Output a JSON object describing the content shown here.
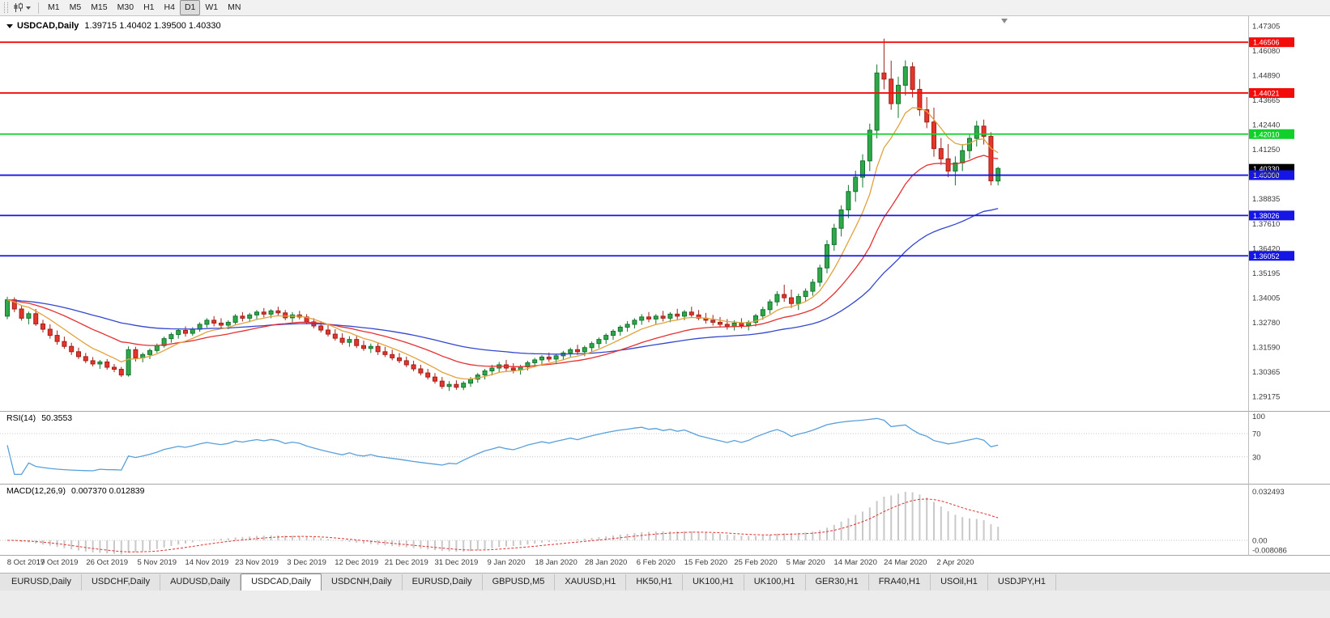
{
  "toolbar": {
    "timeframes": [
      "M1",
      "M5",
      "M15",
      "M30",
      "H1",
      "H4",
      "D1",
      "W1",
      "MN"
    ],
    "active_timeframe": "D1"
  },
  "chart": {
    "symbol_title": "USDCAD,Daily",
    "ohlc_text": "1.39715 1.40402 1.39500 1.40330"
  },
  "indicators": {
    "rsi": {
      "label": "RSI(14)",
      "value": "50.3553",
      "scale": [
        "100",
        "70",
        "30"
      ]
    },
    "macd": {
      "label": "MACD(12,26,9)",
      "values": "0.007370 0.012839",
      "scale": [
        "0.032493",
        "0.00",
        "-0.008086"
      ]
    }
  },
  "tabs": {
    "active_index": 3,
    "items": [
      "EURUSD,Daily",
      "USDCHF,Daily",
      "AUDUSD,Daily",
      "USDCAD,Daily",
      "USDCNH,Daily",
      "EURUSD,Daily",
      "GBPUSD,M5",
      "XAUUSD,H1",
      "HK50,H1",
      "UK100,H1",
      "UK100,H1",
      "GER30,H1",
      "FRA40,H1",
      "USOil,H1",
      "USDJPY,H1"
    ]
  },
  "chart_data": {
    "type": "candlestick",
    "symbol": "USDCAD",
    "timeframe": "Daily",
    "last_ohlc": {
      "open": 1.39715,
      "high": 1.40402,
      "low": 1.395,
      "close": 1.4033
    },
    "current_price": {
      "price": 1.4033,
      "label": "1.40330",
      "badge_color": "#000000"
    },
    "y_axis": {
      "max": 1.47305,
      "min": 1.29175,
      "tick_labels": [
        "1.47305",
        "1.46080",
        "1.44890",
        "1.43665",
        "1.42440",
        "1.41250",
        "1.40030",
        "1.38835",
        "1.37610",
        "1.36420",
        "1.35195",
        "1.34005",
        "1.32780",
        "1.31590",
        "1.30365",
        "1.29175"
      ]
    },
    "x_labels": [
      "8 Oct 2019",
      "17 Oct 2019",
      "26 Oct 2019",
      "5 Nov 2019",
      "14 Nov 2019",
      "23 Nov 2019",
      "3 Dec 2019",
      "12 Dec 2019",
      "21 Dec 2019",
      "31 Dec 2019",
      "9 Jan 2020",
      "18 Jan 2020",
      "28 Jan 2020",
      "6 Feb 2020",
      "15 Feb 2020",
      "25 Feb 2020",
      "5 Mar 2020",
      "14 Mar 2020",
      "24 Mar 2020",
      "2 Apr 2020"
    ],
    "label_every_n_candles": 7,
    "horizontal_levels": [
      {
        "price": 1.46506,
        "label": "1.46506",
        "color": "#f20c0c"
      },
      {
        "price": 1.44021,
        "label": "1.44021",
        "color": "#f20c0c"
      },
      {
        "price": 1.4201,
        "label": "1.42010",
        "color": "#12d02c"
      },
      {
        "price": 1.4,
        "label": "1.40000",
        "color": "#1515e6"
      },
      {
        "price": 1.38026,
        "label": "1.38026",
        "color": "#1515e6"
      },
      {
        "price": 1.36052,
        "label": "1.36052",
        "color": "#1515e6"
      }
    ],
    "candles": {
      "up_color": "#2fa84a",
      "up_border": "#14742c",
      "down_color": "#e6352b",
      "down_border": "#9e211a"
    },
    "moving_averages": [
      {
        "period": 50,
        "method": "ema",
        "color": "#3346cf"
      },
      {
        "period": 21,
        "method": "ema",
        "color": "#e53030"
      },
      {
        "period": 8,
        "method": "ema",
        "color": "#e2a23c"
      }
    ],
    "indicators": {
      "rsi": {
        "period": 14,
        "current": 50.3553,
        "levels": [
          100,
          70,
          30
        ],
        "color": "#58a0dc"
      },
      "macd": {
        "fast": 12,
        "slow": 26,
        "signal": 9,
        "current_macd": 0.00737,
        "current_signal": 0.012839,
        "scale_max": 0.032493,
        "scale_min": -0.008086,
        "histogram_color": "#c9c9c9",
        "signal_color": "#e03030"
      }
    },
    "ohlc": [
      [
        1.331,
        1.3405,
        1.3295,
        1.339
      ],
      [
        1.339,
        1.3402,
        1.333,
        1.3345
      ],
      [
        1.3345,
        1.336,
        1.3288,
        1.33
      ],
      [
        1.33,
        1.3332,
        1.327,
        1.3322
      ],
      [
        1.3322,
        1.3345,
        1.3262,
        1.3272
      ],
      [
        1.3272,
        1.3292,
        1.323,
        1.3246
      ],
      [
        1.3246,
        1.327,
        1.32,
        1.3216
      ],
      [
        1.3216,
        1.324,
        1.317,
        1.3186
      ],
      [
        1.3186,
        1.321,
        1.315,
        1.3162
      ],
      [
        1.3162,
        1.318,
        1.312,
        1.3136
      ],
      [
        1.3136,
        1.3156,
        1.31,
        1.3112
      ],
      [
        1.3112,
        1.313,
        1.308,
        1.3092
      ],
      [
        1.3092,
        1.311,
        1.3064,
        1.3076
      ],
      [
        1.3076,
        1.3096,
        1.3052,
        1.3086
      ],
      [
        1.3086,
        1.31,
        1.3048,
        1.306
      ],
      [
        1.306,
        1.3076,
        1.3036,
        1.305
      ],
      [
        1.305,
        1.3062,
        1.3012,
        1.3022
      ],
      [
        1.3022,
        1.3162,
        1.3014,
        1.3146
      ],
      [
        1.3146,
        1.316,
        1.3088,
        1.3106
      ],
      [
        1.3106,
        1.3132,
        1.3084,
        1.3122
      ],
      [
        1.3122,
        1.3152,
        1.31,
        1.3142
      ],
      [
        1.3142,
        1.3176,
        1.313,
        1.3166
      ],
      [
        1.3166,
        1.321,
        1.3156,
        1.32
      ],
      [
        1.32,
        1.323,
        1.318,
        1.322
      ],
      [
        1.322,
        1.325,
        1.32,
        1.324
      ],
      [
        1.324,
        1.326,
        1.321,
        1.3226
      ],
      [
        1.3226,
        1.3256,
        1.3214,
        1.3246
      ],
      [
        1.3246,
        1.328,
        1.3234,
        1.327
      ],
      [
        1.327,
        1.33,
        1.3254,
        1.329
      ],
      [
        1.329,
        1.331,
        1.326,
        1.3276
      ],
      [
        1.3276,
        1.33,
        1.325,
        1.3266
      ],
      [
        1.3266,
        1.329,
        1.3246,
        1.328
      ],
      [
        1.328,
        1.332,
        1.327,
        1.331
      ],
      [
        1.331,
        1.333,
        1.3284,
        1.33
      ],
      [
        1.33,
        1.3326,
        1.328,
        1.3316
      ],
      [
        1.3316,
        1.334,
        1.3294,
        1.333
      ],
      [
        1.333,
        1.335,
        1.3304,
        1.332
      ],
      [
        1.332,
        1.3344,
        1.33,
        1.3336
      ],
      [
        1.3336,
        1.3356,
        1.331,
        1.3326
      ],
      [
        1.3326,
        1.334,
        1.329,
        1.3302
      ],
      [
        1.3302,
        1.333,
        1.328,
        1.3316
      ],
      [
        1.3316,
        1.3336,
        1.3294,
        1.3306
      ],
      [
        1.3306,
        1.332,
        1.327,
        1.3282
      ],
      [
        1.3282,
        1.33,
        1.325,
        1.3262
      ],
      [
        1.3262,
        1.3286,
        1.323,
        1.3242
      ],
      [
        1.3242,
        1.3266,
        1.321,
        1.3222
      ],
      [
        1.3222,
        1.3246,
        1.319,
        1.3202
      ],
      [
        1.3202,
        1.3226,
        1.317,
        1.3182
      ],
      [
        1.3182,
        1.3212,
        1.316,
        1.3196
      ],
      [
        1.3196,
        1.3216,
        1.3154,
        1.3166
      ],
      [
        1.3166,
        1.319,
        1.314,
        1.3152
      ],
      [
        1.3152,
        1.3176,
        1.313,
        1.3162
      ],
      [
        1.3162,
        1.318,
        1.312,
        1.3136
      ],
      [
        1.3136,
        1.316,
        1.311,
        1.3122
      ],
      [
        1.3122,
        1.3146,
        1.3094,
        1.3106
      ],
      [
        1.3106,
        1.313,
        1.308,
        1.3092
      ],
      [
        1.3092,
        1.3112,
        1.306,
        1.3072
      ],
      [
        1.3072,
        1.3092,
        1.304,
        1.3052
      ],
      [
        1.3052,
        1.3072,
        1.302,
        1.3032
      ],
      [
        1.3032,
        1.3052,
        1.3,
        1.3012
      ],
      [
        1.3012,
        1.3032,
        1.298,
        1.2992
      ],
      [
        1.2992,
        1.3012,
        1.2954,
        1.2966
      ],
      [
        1.2966,
        1.2992,
        1.2944,
        1.2976
      ],
      [
        1.2976,
        1.2996,
        1.295,
        1.2962
      ],
      [
        1.2962,
        1.2992,
        1.2948,
        1.2982
      ],
      [
        1.2982,
        1.3012,
        1.2964,
        1.3002
      ],
      [
        1.3002,
        1.3032,
        1.2984,
        1.3022
      ],
      [
        1.3022,
        1.3052,
        1.3,
        1.3042
      ],
      [
        1.3042,
        1.3072,
        1.302,
        1.3056
      ],
      [
        1.3056,
        1.3086,
        1.3034,
        1.3072
      ],
      [
        1.3072,
        1.3096,
        1.304,
        1.3056
      ],
      [
        1.3056,
        1.308,
        1.303,
        1.3046
      ],
      [
        1.3046,
        1.3072,
        1.3024,
        1.3062
      ],
      [
        1.3062,
        1.3092,
        1.3044,
        1.3082
      ],
      [
        1.3082,
        1.3106,
        1.306,
        1.3096
      ],
      [
        1.3096,
        1.312,
        1.3074,
        1.311
      ],
      [
        1.311,
        1.3132,
        1.3086,
        1.31
      ],
      [
        1.31,
        1.3126,
        1.308,
        1.3116
      ],
      [
        1.3116,
        1.314,
        1.3094,
        1.313
      ],
      [
        1.313,
        1.3156,
        1.311,
        1.3146
      ],
      [
        1.3146,
        1.317,
        1.312,
        1.3136
      ],
      [
        1.3136,
        1.3166,
        1.3114,
        1.3156
      ],
      [
        1.3156,
        1.3186,
        1.3134,
        1.3176
      ],
      [
        1.3176,
        1.3206,
        1.3154,
        1.3196
      ],
      [
        1.3196,
        1.3226,
        1.3174,
        1.3216
      ],
      [
        1.3216,
        1.3246,
        1.3194,
        1.3236
      ],
      [
        1.3236,
        1.3266,
        1.3214,
        1.3256
      ],
      [
        1.3256,
        1.3286,
        1.3234,
        1.327
      ],
      [
        1.327,
        1.33,
        1.325,
        1.329
      ],
      [
        1.329,
        1.332,
        1.3268,
        1.3306
      ],
      [
        1.3306,
        1.333,
        1.328,
        1.3296
      ],
      [
        1.3296,
        1.332,
        1.327,
        1.331
      ],
      [
        1.331,
        1.3336,
        1.3284,
        1.33
      ],
      [
        1.33,
        1.333,
        1.328,
        1.332
      ],
      [
        1.332,
        1.3346,
        1.3294,
        1.331
      ],
      [
        1.331,
        1.334,
        1.329,
        1.333
      ],
      [
        1.333,
        1.3356,
        1.3304,
        1.3316
      ],
      [
        1.3316,
        1.334,
        1.329,
        1.33
      ],
      [
        1.33,
        1.3326,
        1.3274,
        1.329
      ],
      [
        1.329,
        1.3316,
        1.3264,
        1.328
      ],
      [
        1.328,
        1.3306,
        1.3254,
        1.327
      ],
      [
        1.327,
        1.3296,
        1.3244,
        1.326
      ],
      [
        1.326,
        1.329,
        1.324,
        1.3276
      ],
      [
        1.3276,
        1.33,
        1.325,
        1.3264
      ],
      [
        1.3264,
        1.329,
        1.324,
        1.328
      ],
      [
        1.328,
        1.3322,
        1.326,
        1.3312
      ],
      [
        1.3312,
        1.3356,
        1.3292,
        1.3342
      ],
      [
        1.3342,
        1.3392,
        1.3322,
        1.338
      ],
      [
        1.338,
        1.3432,
        1.336,
        1.3416
      ],
      [
        1.3416,
        1.3464,
        1.338,
        1.34
      ],
      [
        1.34,
        1.344,
        1.335,
        1.3372
      ],
      [
        1.3372,
        1.342,
        1.334,
        1.3406
      ],
      [
        1.3406,
        1.3446,
        1.338,
        1.3432
      ],
      [
        1.3432,
        1.3492,
        1.341,
        1.3476
      ],
      [
        1.3476,
        1.3562,
        1.3454,
        1.3546
      ],
      [
        1.3546,
        1.3682,
        1.352,
        1.366
      ],
      [
        1.366,
        1.3762,
        1.363,
        1.374
      ],
      [
        1.374,
        1.3852,
        1.37,
        1.383
      ],
      [
        1.383,
        1.3952,
        1.379,
        1.392
      ],
      [
        1.392,
        1.4022,
        1.387,
        1.399
      ],
      [
        1.399,
        1.4102,
        1.394,
        1.407
      ],
      [
        1.407,
        1.4252,
        1.402,
        1.422
      ],
      [
        1.422,
        1.4542,
        1.418,
        1.45
      ],
      [
        1.45,
        1.4668,
        1.442,
        1.447
      ],
      [
        1.447,
        1.456,
        1.432,
        1.435
      ],
      [
        1.435,
        1.4482,
        1.428,
        1.444
      ],
      [
        1.444,
        1.4562,
        1.439,
        1.453
      ],
      [
        1.453,
        1.4552,
        1.438,
        1.442
      ],
      [
        1.442,
        1.447,
        1.429,
        1.432
      ],
      [
        1.432,
        1.4382,
        1.423,
        1.426
      ],
      [
        1.426,
        1.433,
        1.409,
        1.413
      ],
      [
        1.413,
        1.4182,
        1.405,
        1.408
      ],
      [
        1.408,
        1.4152,
        1.399,
        1.402
      ],
      [
        1.402,
        1.4092,
        1.395,
        1.406
      ],
      [
        1.406,
        1.4152,
        1.402,
        1.412
      ],
      [
        1.412,
        1.4202,
        1.408,
        1.418
      ],
      [
        1.418,
        1.4266,
        1.414,
        1.424
      ],
      [
        1.424,
        1.4272,
        1.415,
        1.419
      ],
      [
        1.419,
        1.421,
        1.395,
        1.3972
      ],
      [
        1.39715,
        1.40402,
        1.395,
        1.4033
      ]
    ]
  }
}
